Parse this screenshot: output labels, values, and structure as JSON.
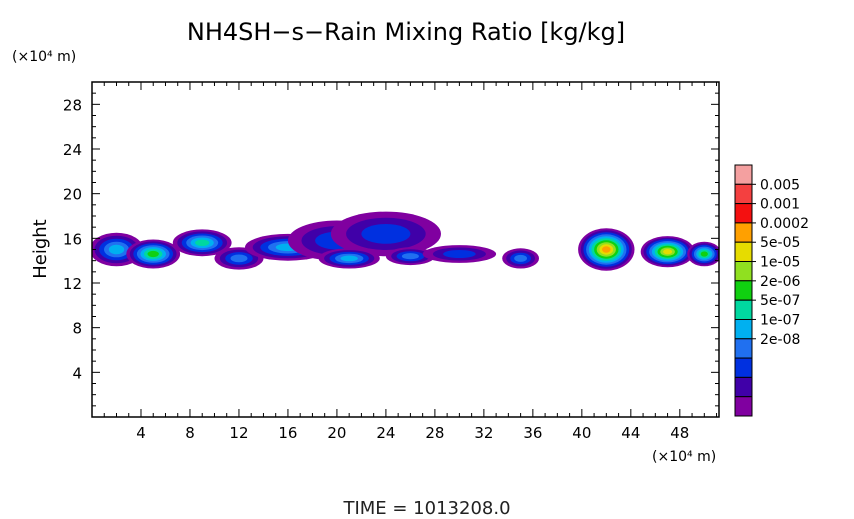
{
  "chart_data": {
    "type": "heatmap",
    "title": "NH4SH−s−Rain Mixing Ratio [kg/kg]",
    "ylabel": "Height",
    "y_unit": "(×10⁴ m)",
    "x_unit": "(×10⁴ m)",
    "xlim": [
      0,
      51.2
    ],
    "ylim": [
      0,
      30
    ],
    "x_ticks": [
      "4",
      "8",
      "12",
      "16",
      "20",
      "24",
      "28",
      "32",
      "36",
      "40",
      "44",
      "48"
    ],
    "y_ticks": [
      "4",
      "8",
      "12",
      "16",
      "20",
      "24",
      "28"
    ],
    "x_tick_values": [
      4,
      8,
      12,
      16,
      20,
      24,
      28,
      32,
      36,
      40,
      44,
      48
    ],
    "y_tick_values": [
      4,
      8,
      12,
      16,
      20,
      24,
      28
    ],
    "colorbar": {
      "labels": [
        "0.005",
        "0.001",
        "0.0002",
        "5e-05",
        "1e-05",
        "2e-06",
        "5e-07",
        "1e-07",
        "2e-08"
      ],
      "colors": [
        "#f4a0a0",
        "#f44040",
        "#f41010",
        "#ffa000",
        "#e6dc00",
        "#90e020",
        "#10d010",
        "#00d8a0",
        "#00b0f0",
        "#2070f0",
        "#0030e0",
        "#4000a8",
        "#8000a0"
      ],
      "scale": "log"
    },
    "time_label": "TIME = 1013208.0",
    "blobs": [
      {
        "x": 2,
        "y": 15.0,
        "rx": 2.2,
        "ry": 1.5,
        "level": 4
      },
      {
        "x": 5,
        "y": 14.6,
        "rx": 2.2,
        "ry": 1.3,
        "level": 6
      },
      {
        "x": 9,
        "y": 15.6,
        "rx": 2.4,
        "ry": 1.2,
        "level": 5
      },
      {
        "x": 12,
        "y": 14.2,
        "rx": 2.0,
        "ry": 1.0,
        "level": 3
      },
      {
        "x": 16,
        "y": 15.2,
        "rx": 3.5,
        "ry": 1.2,
        "level": 4
      },
      {
        "x": 20,
        "y": 15.8,
        "rx": 4.0,
        "ry": 1.8,
        "level": 2
      },
      {
        "x": 24,
        "y": 16.4,
        "rx": 4.5,
        "ry": 2.0,
        "level": 2
      },
      {
        "x": 21,
        "y": 14.2,
        "rx": 2.5,
        "ry": 0.9,
        "level": 4
      },
      {
        "x": 26,
        "y": 14.4,
        "rx": 2.0,
        "ry": 0.8,
        "level": 3
      },
      {
        "x": 30,
        "y": 14.6,
        "rx": 3.0,
        "ry": 0.8,
        "level": 2
      },
      {
        "x": 35,
        "y": 14.2,
        "rx": 1.5,
        "ry": 0.9,
        "level": 3
      },
      {
        "x": 42,
        "y": 15.0,
        "rx": 2.3,
        "ry": 1.9,
        "level": 9
      },
      {
        "x": 47,
        "y": 14.8,
        "rx": 2.2,
        "ry": 1.4,
        "level": 8
      },
      {
        "x": 50,
        "y": 14.6,
        "rx": 1.4,
        "ry": 1.1,
        "level": 6
      }
    ]
  }
}
